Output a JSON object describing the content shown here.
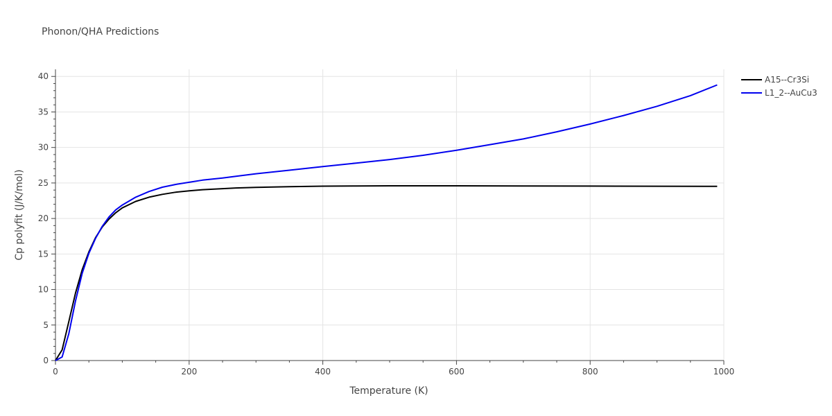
{
  "chart_data": {
    "type": "line",
    "title": "Phonon/QHA Predictions",
    "xlabel": "Temperature (K)",
    "ylabel": "Cp polyfit (J/K/mol)",
    "xlim": [
      0,
      1000
    ],
    "ylim": [
      0,
      41
    ],
    "xticks": [
      0,
      200,
      400,
      600,
      800,
      1000
    ],
    "yticks": [
      0,
      5,
      10,
      15,
      20,
      25,
      30,
      35,
      40
    ],
    "grid": true,
    "legend_position": "top-right",
    "series": [
      {
        "name": "A15--Cr3Si",
        "color": "#000000",
        "x": [
          0,
          10,
          20,
          30,
          40,
          50,
          60,
          70,
          80,
          90,
          100,
          120,
          140,
          160,
          180,
          200,
          220,
          250,
          270,
          300,
          350,
          400,
          450,
          500,
          600,
          700,
          800,
          900,
          990
        ],
        "y": [
          0,
          1.5,
          5.5,
          9.5,
          12.8,
          15.3,
          17.3,
          18.8,
          19.9,
          20.8,
          21.5,
          22.4,
          23.0,
          23.4,
          23.7,
          23.9,
          24.05,
          24.2,
          24.3,
          24.38,
          24.48,
          24.55,
          24.58,
          24.6,
          24.6,
          24.58,
          24.56,
          24.54,
          24.52
        ]
      },
      {
        "name": "L1_2--AuCu3",
        "color": "#0000ee",
        "x": [
          0,
          10,
          20,
          30,
          40,
          50,
          60,
          70,
          80,
          90,
          100,
          120,
          140,
          160,
          180,
          200,
          220,
          250,
          300,
          350,
          400,
          450,
          500,
          550,
          600,
          650,
          700,
          750,
          800,
          850,
          900,
          950,
          990
        ],
        "y": [
          0,
          0.5,
          3.8,
          8.4,
          12.3,
          15.1,
          17.2,
          18.9,
          20.2,
          21.2,
          21.9,
          23.0,
          23.8,
          24.4,
          24.8,
          25.1,
          25.4,
          25.7,
          26.3,
          26.8,
          27.3,
          27.8,
          28.3,
          28.9,
          29.6,
          30.4,
          31.2,
          32.2,
          33.3,
          34.5,
          35.8,
          37.3,
          38.8
        ]
      }
    ]
  }
}
